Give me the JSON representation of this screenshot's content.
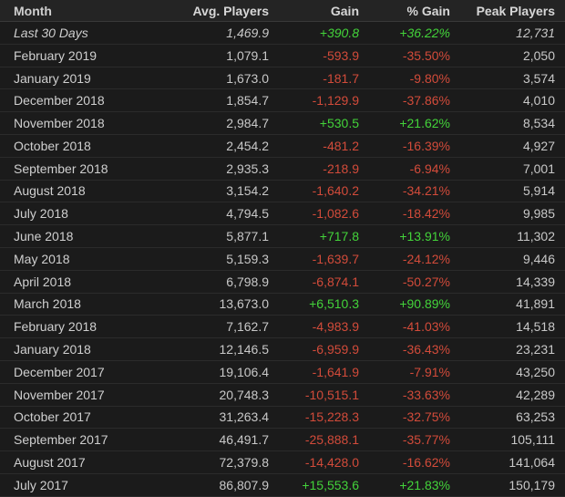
{
  "colors": {
    "background": "#1b1b1b",
    "header_background": "#242424",
    "text": "#d2d2d2",
    "positive": "#43d33a",
    "negative": "#d24b3a"
  },
  "header": {
    "month": "Month",
    "avg_players": "Avg. Players",
    "gain": "Gain",
    "percent_gain": "% Gain",
    "peak_players": "Peak Players"
  },
  "rows": [
    {
      "month": "Last 30 Days",
      "avg": "1,469.9",
      "gain": "+390.8",
      "pct": "+36.22%",
      "peak": "12,731",
      "trend": "pos",
      "current": true
    },
    {
      "month": "February 2019",
      "avg": "1,079.1",
      "gain": "-593.9",
      "pct": "-35.50%",
      "peak": "2,050",
      "trend": "neg"
    },
    {
      "month": "January 2019",
      "avg": "1,673.0",
      "gain": "-181.7",
      "pct": "-9.80%",
      "peak": "3,574",
      "trend": "neg"
    },
    {
      "month": "December 2018",
      "avg": "1,854.7",
      "gain": "-1,129.9",
      "pct": "-37.86%",
      "peak": "4,010",
      "trend": "neg"
    },
    {
      "month": "November 2018",
      "avg": "2,984.7",
      "gain": "+530.5",
      "pct": "+21.62%",
      "peak": "8,534",
      "trend": "pos"
    },
    {
      "month": "October 2018",
      "avg": "2,454.2",
      "gain": "-481.2",
      "pct": "-16.39%",
      "peak": "4,927",
      "trend": "neg"
    },
    {
      "month": "September 2018",
      "avg": "2,935.3",
      "gain": "-218.9",
      "pct": "-6.94%",
      "peak": "7,001",
      "trend": "neg"
    },
    {
      "month": "August 2018",
      "avg": "3,154.2",
      "gain": "-1,640.2",
      "pct": "-34.21%",
      "peak": "5,914",
      "trend": "neg"
    },
    {
      "month": "July 2018",
      "avg": "4,794.5",
      "gain": "-1,082.6",
      "pct": "-18.42%",
      "peak": "9,985",
      "trend": "neg"
    },
    {
      "month": "June 2018",
      "avg": "5,877.1",
      "gain": "+717.8",
      "pct": "+13.91%",
      "peak": "11,302",
      "trend": "pos"
    },
    {
      "month": "May 2018",
      "avg": "5,159.3",
      "gain": "-1,639.7",
      "pct": "-24.12%",
      "peak": "9,446",
      "trend": "neg"
    },
    {
      "month": "April 2018",
      "avg": "6,798.9",
      "gain": "-6,874.1",
      "pct": "-50.27%",
      "peak": "14,339",
      "trend": "neg"
    },
    {
      "month": "March 2018",
      "avg": "13,673.0",
      "gain": "+6,510.3",
      "pct": "+90.89%",
      "peak": "41,891",
      "trend": "pos"
    },
    {
      "month": "February 2018",
      "avg": "7,162.7",
      "gain": "-4,983.9",
      "pct": "-41.03%",
      "peak": "14,518",
      "trend": "neg"
    },
    {
      "month": "January 2018",
      "avg": "12,146.5",
      "gain": "-6,959.9",
      "pct": "-36.43%",
      "peak": "23,231",
      "trend": "neg"
    },
    {
      "month": "December 2017",
      "avg": "19,106.4",
      "gain": "-1,641.9",
      "pct": "-7.91%",
      "peak": "43,250",
      "trend": "neg"
    },
    {
      "month": "November 2017",
      "avg": "20,748.3",
      "gain": "-10,515.1",
      "pct": "-33.63%",
      "peak": "42,289",
      "trend": "neg"
    },
    {
      "month": "October 2017",
      "avg": "31,263.4",
      "gain": "-15,228.3",
      "pct": "-32.75%",
      "peak": "63,253",
      "trend": "neg"
    },
    {
      "month": "September 2017",
      "avg": "46,491.7",
      "gain": "-25,888.1",
      "pct": "-35.77%",
      "peak": "105,111",
      "trend": "neg"
    },
    {
      "month": "August 2017",
      "avg": "72,379.8",
      "gain": "-14,428.0",
      "pct": "-16.62%",
      "peak": "141,064",
      "trend": "neg"
    },
    {
      "month": "July 2017",
      "avg": "86,807.9",
      "gain": "+15,553.6",
      "pct": "+21.83%",
      "peak": "150,179",
      "trend": "pos"
    }
  ]
}
